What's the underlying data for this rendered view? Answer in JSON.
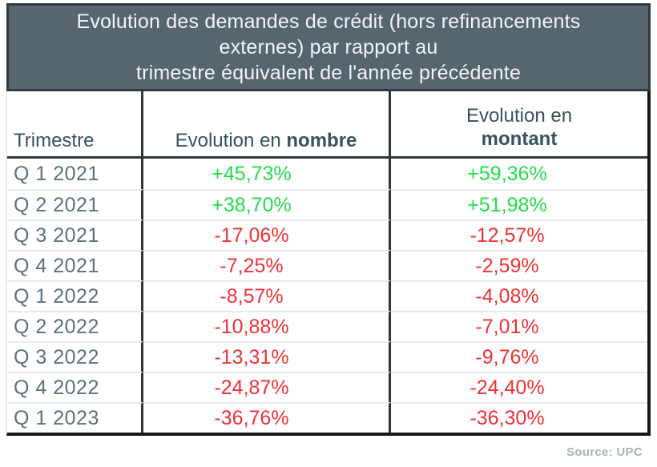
{
  "title": {
    "lines": [
      "Evolution des demandes de crédit (hors refinancements",
      "externes) par rapport au",
      "trimestre équivalent de l'année précédente"
    ]
  },
  "table": {
    "header": {
      "trimestre": "Trimestre",
      "nombre_prefix": "Evolution en ",
      "nombre_bold": "nombre",
      "montant_line1": "Evolution en",
      "montant_line2": "montant"
    },
    "rows": [
      {
        "quarter": "Q 1 2021",
        "nombre": "+45,73%",
        "montant": "+59,36%",
        "trend": "up"
      },
      {
        "quarter": "Q 2 2021",
        "nombre": "+38,70%",
        "montant": "+51,98%",
        "trend": "up"
      },
      {
        "quarter": "Q 3 2021",
        "nombre": "-17,06%",
        "montant": "-12,57%",
        "trend": "down"
      },
      {
        "quarter": "Q 4 2021",
        "nombre": "-7,25%",
        "montant": "-2,59%",
        "trend": "down"
      },
      {
        "quarter": "Q 1 2022",
        "nombre": "-8,57%",
        "montant": "-4,08%",
        "trend": "down"
      },
      {
        "quarter": "Q 2 2022",
        "nombre": "-10,88%",
        "montant": "-7,01%",
        "trend": "down"
      },
      {
        "quarter": "Q 3 2022",
        "nombre": "-13,31%",
        "montant": "-9,76%",
        "trend": "down"
      },
      {
        "quarter": "Q 4 2022",
        "nombre": "-24,87%",
        "montant": "-24,40%",
        "trend": "down"
      },
      {
        "quarter": "Q 1 2023",
        "nombre": "-36,76%",
        "montant": "-36,30%",
        "trend": "down"
      }
    ]
  },
  "footer": {
    "source": "Source: UPC"
  },
  "colors": {
    "positive": "#23DC4B",
    "negative": "#EE3237",
    "title_background": "#57656F",
    "title_border": "#2F3B44",
    "title_text": "#F2F4F6",
    "header_text": "#36525F",
    "quarter_text": "#5E707E",
    "grid_line": "#2E363E",
    "source_text": "#A9B3BE"
  },
  "chart_data": {
    "type": "table",
    "title": "Evolution des demandes de crédit (hors refinancements externes) par rapport au trimestre équivalent de l'année précédente",
    "columns": [
      "Trimestre",
      "Evolution en nombre",
      "Evolution en montant"
    ],
    "categories": [
      "Q 1 2021",
      "Q 2 2021",
      "Q 3 2021",
      "Q 4 2021",
      "Q 1 2022",
      "Q 2 2022",
      "Q 3 2022",
      "Q 4 2022",
      "Q 1 2023"
    ],
    "series": [
      {
        "name": "Evolution en nombre",
        "values": [
          45.73,
          38.7,
          -17.06,
          -7.25,
          -8.57,
          -10.88,
          -13.31,
          -24.87,
          -36.76
        ]
      },
      {
        "name": "Evolution en montant",
        "values": [
          59.36,
          51.98,
          -12.57,
          -2.59,
          -4.08,
          -7.01,
          -9.76,
          -24.4,
          -36.3
        ]
      }
    ],
    "unit": "%",
    "source": "Source: UPC"
  }
}
